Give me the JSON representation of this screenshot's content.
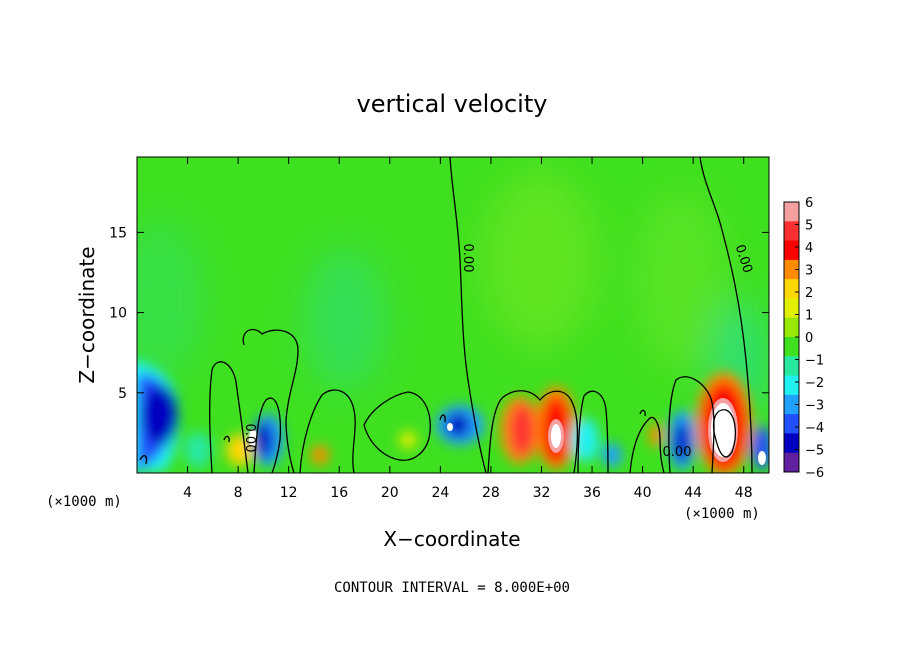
{
  "chart_data": {
    "type": "heatmap",
    "title": "vertical velocity",
    "xlabel": "X−coordinate",
    "ylabel": "Z−coordinate",
    "x_unit_left": "(×1000 m)",
    "x_unit_right": "(×1000 m)",
    "xlim": [
      0,
      50
    ],
    "ylim": [
      0,
      19.7
    ],
    "xticks": [
      4,
      8,
      12,
      16,
      20,
      24,
      28,
      32,
      36,
      40,
      44,
      48
    ],
    "xtick_labels": [
      "4",
      "8",
      "12",
      "16",
      "20",
      "24",
      "28",
      "32",
      "36",
      "40",
      "44",
      "48"
    ],
    "yticks": [
      5,
      10,
      15
    ],
    "ytick_labels": [
      "5",
      "10",
      "15"
    ],
    "colorbar": {
      "min": -6,
      "max": 6,
      "labels": [
        "6",
        "5",
        "4",
        "3",
        "2",
        "1",
        "0",
        "−1",
        "−2",
        "−3",
        "−4",
        "−5",
        "−6"
      ],
      "colors": [
        "#f5a0a0",
        "#ff3030",
        "#ff0000",
        "#ff8c00",
        "#ffd700",
        "#e0f000",
        "#98e800",
        "#3fe020",
        "#28e8a0",
        "#20f0f0",
        "#20a0ff",
        "#2050ff",
        "#0000c0",
        "#6020a0"
      ]
    },
    "contour_label": "0.00",
    "contour_interval_text": "CONTOUR INTERVAL = 8.000E+00",
    "features": [
      {
        "x": 2.3,
        "z": 3.2,
        "value": -4.5
      },
      {
        "x": 5.0,
        "z": 1.5,
        "value": -2.0
      },
      {
        "x": 7.6,
        "z": 1.2,
        "value": 1.8
      },
      {
        "x": 9.3,
        "z": 2.2,
        "value": 3.0
      },
      {
        "x": 10.0,
        "z": 1.5,
        "value": -4.5
      },
      {
        "x": 10.5,
        "z": 3.0,
        "value": -2.5
      },
      {
        "x": 14.0,
        "z": 1.3,
        "value": 2.0
      },
      {
        "x": 21.5,
        "z": 2.0,
        "value": 1.5
      },
      {
        "x": 25.3,
        "z": 2.5,
        "value": -4.0
      },
      {
        "x": 30.2,
        "z": 2.7,
        "value": 4.0
      },
      {
        "x": 33.0,
        "z": 2.2,
        "value": 6.0
      },
      {
        "x": 35.0,
        "z": 2.0,
        "value": -1.5
      },
      {
        "x": 38.8,
        "z": 1.3,
        "value": -2.0
      },
      {
        "x": 41.6,
        "z": 2.5,
        "value": 3.0
      },
      {
        "x": 43.3,
        "z": 2.0,
        "value": -5.0
      },
      {
        "x": 46.7,
        "z": 3.0,
        "value": 6.0
      },
      {
        "x": 49.5,
        "z": 1.5,
        "value": -5.0
      },
      {
        "x": 17.0,
        "z": 9.0,
        "value": -1.0
      },
      {
        "x": 32.0,
        "z": 11.0,
        "value": 0.6
      }
    ]
  }
}
